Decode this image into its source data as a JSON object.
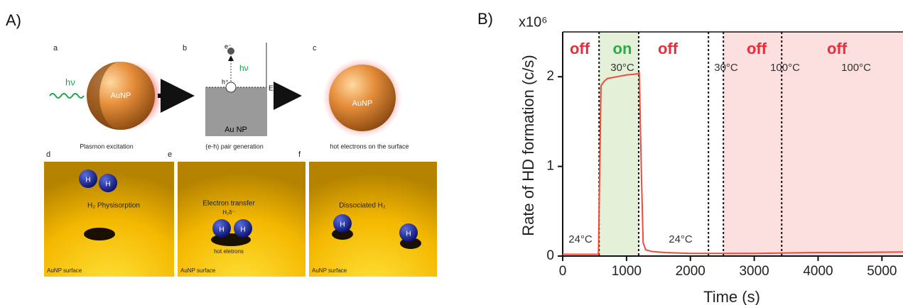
{
  "panel_a": {
    "label": "A)",
    "sub_labels": [
      "a",
      "b",
      "c",
      "d",
      "e",
      "f"
    ],
    "photon": "hν",
    "particle": "AuNP",
    "electron": "e⁻",
    "hole": "h⁺",
    "fermi": "Ef",
    "band": "Au NP",
    "captions": [
      "Plasmon excitation",
      "(e-h) pair generation",
      "hot electrons on the surface"
    ],
    "surface": "AuNP surface",
    "atom": "H",
    "panel_texts": [
      "H₂ Physisorption",
      "Electron transfer",
      "H₂δ⁻",
      "hot eletrons",
      "Dissociated H₂"
    ]
  },
  "chart_data": {
    "type": "line",
    "panel_label": "B)",
    "scale_label": "x10⁶",
    "ylabel": "Rate of HD formation (c/s)",
    "xlabel": "Time (s)",
    "color": "#f04a3a",
    "x": [
      0,
      560,
      600,
      650,
      700,
      850,
      1000,
      1150,
      1200,
      1230,
      1260,
      1300,
      1400,
      1600,
      2000,
      2500,
      3000,
      3500,
      4000,
      4500,
      5330
    ],
    "values": [
      0.02,
      0.02,
      1.9,
      1.95,
      1.98,
      2.0,
      2.02,
      2.03,
      2.04,
      1.0,
      0.15,
      0.07,
      0.05,
      0.04,
      0.03,
      0.03,
      0.03,
      0.035,
      0.04,
      0.04,
      0.045
    ],
    "xlim": [
      0,
      5330
    ],
    "ylim": [
      0,
      2.5
    ],
    "xticks": [
      0,
      1000,
      2000,
      3000,
      4000,
      5000
    ],
    "yticks": [
      0,
      1,
      2
    ],
    "regions": [
      {
        "x0": 570,
        "x1": 1190,
        "color": "#e4f1d8"
      },
      {
        "x0": 2517,
        "x1": 5330,
        "color": "#fce0e0"
      }
    ],
    "dashed_lines": [
      570,
      1190,
      2283,
      2517,
      3430
    ],
    "annotations": [
      {
        "text": "off",
        "color": "#ee2b3b"
      },
      {
        "text": "on",
        "color": "#2fa84a"
      },
      {
        "text": "off",
        "color": "#ee2b3b"
      },
      {
        "text": "off",
        "color": "#ee2b3b"
      },
      {
        "text": "off",
        "color": "#ee2b3b"
      },
      {
        "text": "30°C",
        "color": "#333333"
      },
      {
        "text": "30°C",
        "color": "#333333"
      },
      {
        "text": "100°C",
        "color": "#333333"
      },
      {
        "text": "100°C",
        "color": "#333333"
      },
      {
        "text": "24°C",
        "color": "#333333"
      },
      {
        "text": "24°C",
        "color": "#333333"
      }
    ]
  }
}
